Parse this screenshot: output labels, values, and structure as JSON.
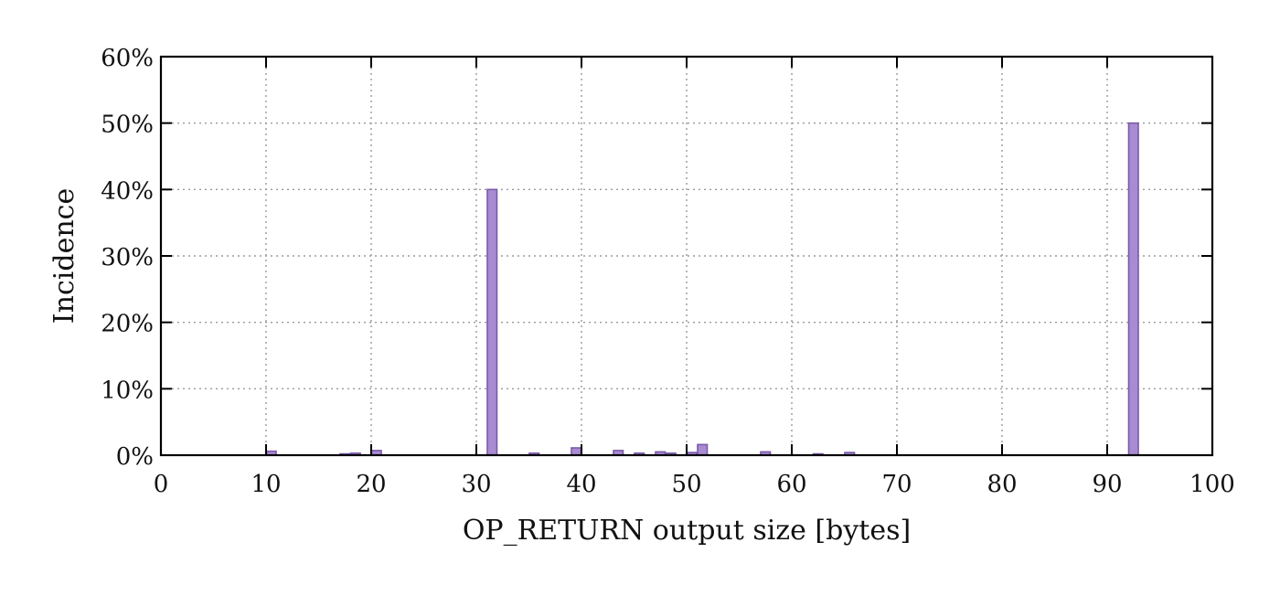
{
  "chart_data": {
    "type": "bar",
    "xlabel": "OP_RETURN output size [bytes]",
    "ylabel": "Incidence",
    "xlim": [
      0,
      100
    ],
    "ylim": [
      0,
      60
    ],
    "x_ticks": [
      0,
      10,
      20,
      30,
      40,
      50,
      60,
      70,
      80,
      90,
      100
    ],
    "x_tick_labels": [
      "0",
      "10",
      "20",
      "30",
      "40",
      "50",
      "60",
      "70",
      "80",
      "90",
      "100"
    ],
    "y_ticks": [
      0,
      10,
      20,
      30,
      40,
      50,
      60
    ],
    "y_tick_labels": [
      "0%",
      "10%",
      "20%",
      "30%",
      "40%",
      "50%",
      "60%"
    ],
    "grid": true,
    "bar_color": "#a98bd2",
    "bar_edge_color": "#7a5aaa",
    "x": [
      10.5,
      17.5,
      18.5,
      20.5,
      31.5,
      35.5,
      39.5,
      43.5,
      45.5,
      47.5,
      48.5,
      50.5,
      51.5,
      57.5,
      62.5,
      65.5,
      92.5
    ],
    "values": [
      0.6,
      0.2,
      0.3,
      0.7,
      40,
      0.3,
      1.1,
      0.7,
      0.3,
      0.5,
      0.3,
      0.4,
      1.6,
      0.5,
      0.2,
      0.4,
      50
    ]
  }
}
